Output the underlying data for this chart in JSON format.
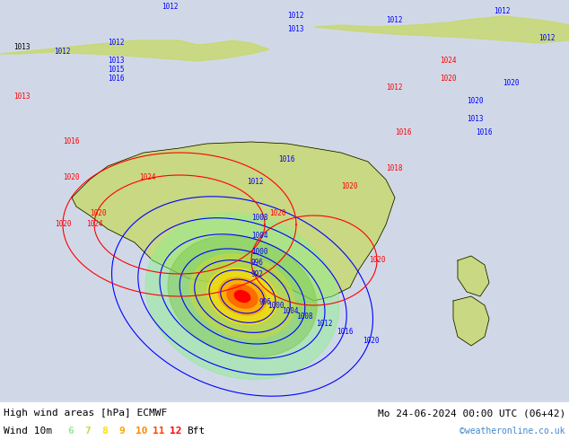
{
  "title_left": "High wind areas [hPa] ECMWF",
  "title_right": "Mo 24-06-2024 00:00 UTC (06+42)",
  "subtitle_left": "Wind 10m",
  "subtitle_right": "©weatheronline.co.uk",
  "legend_labels": [
    "6",
    "7",
    "8",
    "9",
    "10",
    "11",
    "12",
    "Bft"
  ],
  "legend_colors": [
    "#90ee90",
    "#7ec850",
    "#ffdd00",
    "#ffa500",
    "#ff6600",
    "#ff0000",
    "#cc0000",
    "#000000"
  ],
  "bg_color": "#d0d8e8",
  "land_color": "#c8d8a0",
  "australia_fill": "#c8d870",
  "title_color": "#000000",
  "subtitle_color": "#000000",
  "legend_bft_color": "#000000",
  "watermark_color": "#4488cc",
  "bottom_bar_color": "#ffffff",
  "figsize": [
    6.34,
    4.9
  ],
  "dpi": 100
}
